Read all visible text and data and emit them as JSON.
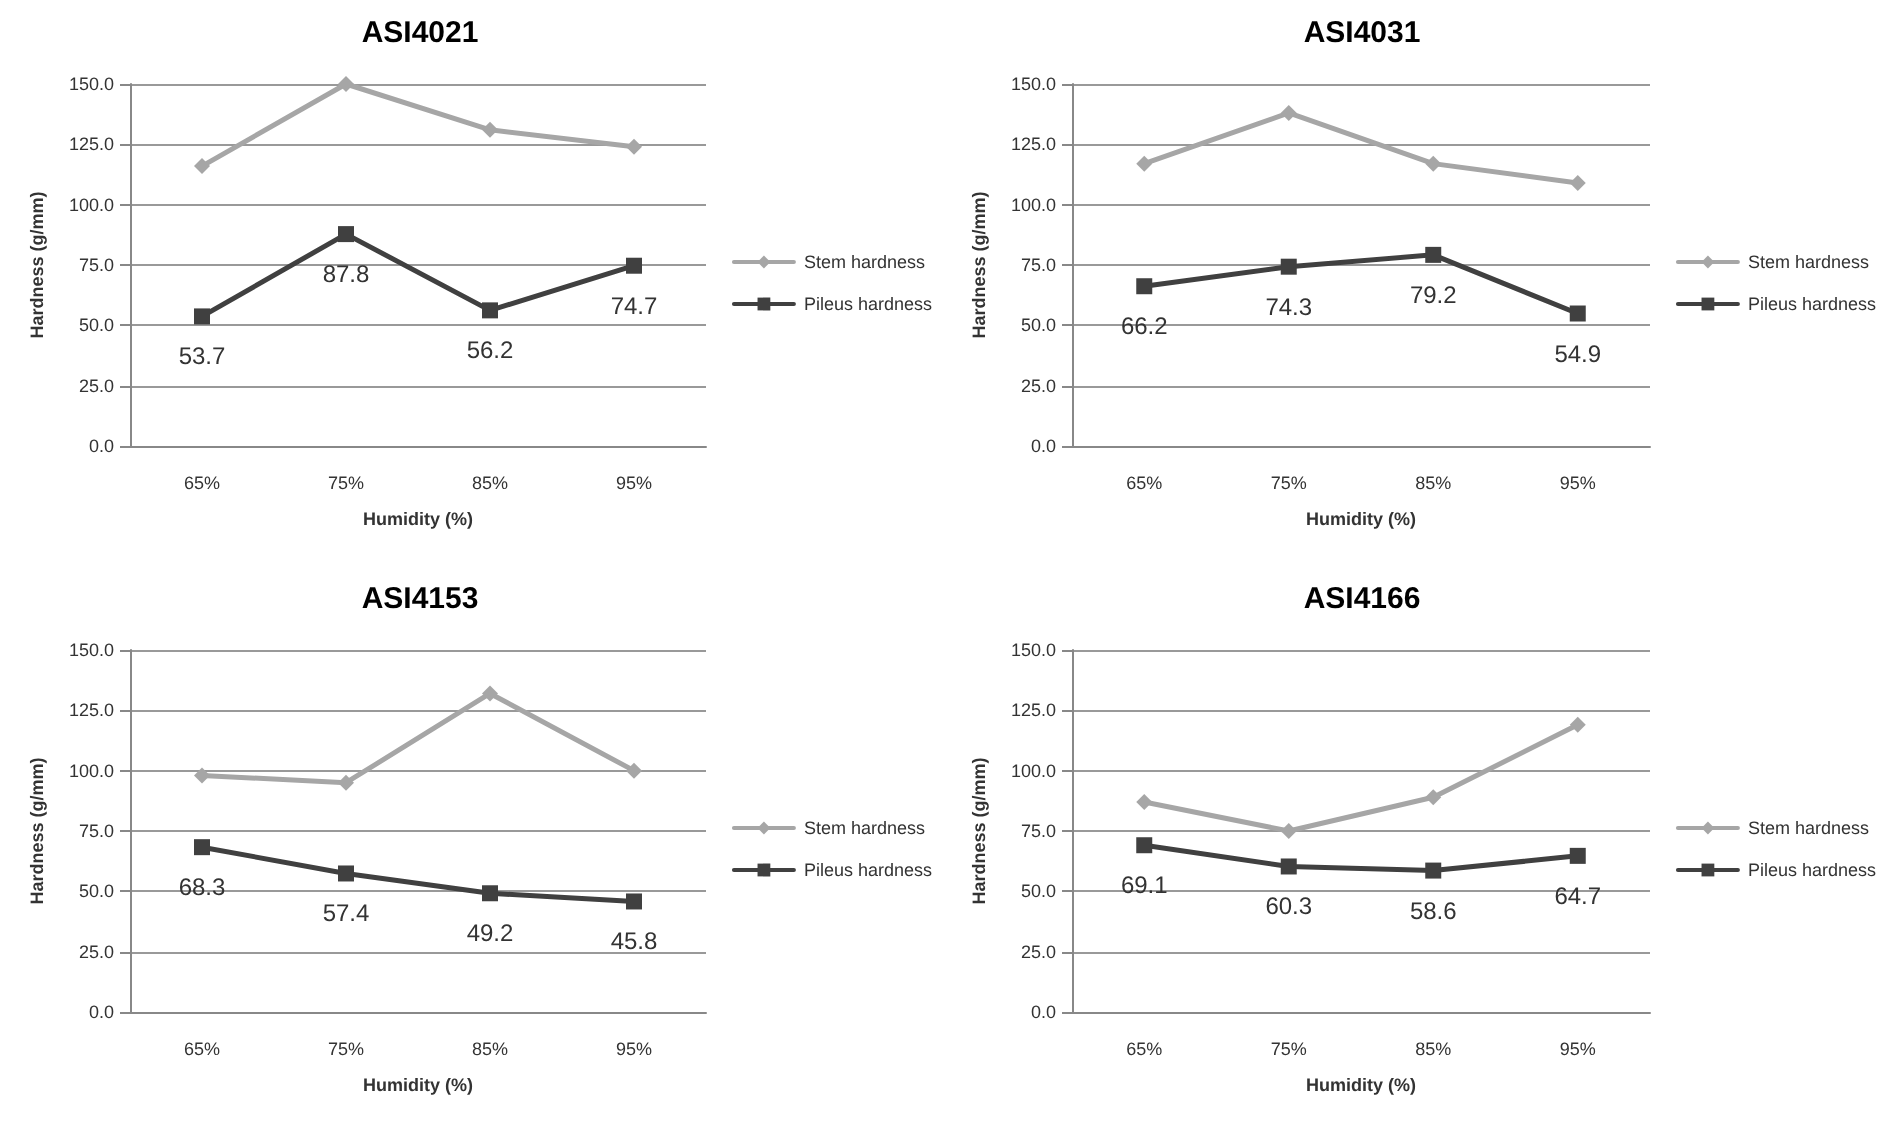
{
  "chart_data": [
    {
      "type": "line",
      "title": "ASI4021",
      "xlabel": "Humidity (%)",
      "ylabel": "Hardness (g/mm)",
      "categories": [
        "65%",
        "75%",
        "85%",
        "95%"
      ],
      "ylim": [
        0,
        150
      ],
      "yticks": [
        {
          "value": 0,
          "label": "0.0"
        },
        {
          "value": 25,
          "label": "25.0"
        },
        {
          "value": 50,
          "label": "50.0"
        },
        {
          "value": 75,
          "label": "75.0"
        },
        {
          "value": 100,
          "label": "100.0"
        },
        {
          "value": 125,
          "label": "125.0"
        },
        {
          "value": 150,
          "label": "150.0"
        }
      ],
      "grid": "y",
      "legend": "right",
      "series": [
        {
          "name": "Stem hardness",
          "color": "#a6a6a6",
          "marker": "diamond",
          "values": [
            116,
            150,
            131,
            124
          ]
        },
        {
          "name": "Pileus hardness",
          "color": "#404040",
          "marker": "square",
          "values": [
            53.7,
            87.8,
            56.2,
            74.7
          ],
          "value_labels": [
            "53.7",
            "87.8",
            "56.2",
            "74.7"
          ]
        }
      ]
    },
    {
      "type": "line",
      "title": "ASI4031",
      "xlabel": "Humidity (%)",
      "ylabel": "Hardness (g/mm)",
      "categories": [
        "65%",
        "75%",
        "85%",
        "95%"
      ],
      "ylim": [
        0,
        150
      ],
      "yticks": [
        {
          "value": 0,
          "label": "0.0"
        },
        {
          "value": 25,
          "label": "25.0"
        },
        {
          "value": 50,
          "label": "50.0"
        },
        {
          "value": 75,
          "label": "75.0"
        },
        {
          "value": 100,
          "label": "100.0"
        },
        {
          "value": 125,
          "label": "125.0"
        },
        {
          "value": 150,
          "label": "150.0"
        }
      ],
      "grid": "y",
      "legend": "right",
      "series": [
        {
          "name": "Stem hardness",
          "color": "#a6a6a6",
          "marker": "diamond",
          "values": [
            117,
            138,
            117,
            109
          ]
        },
        {
          "name": "Pileus hardness",
          "color": "#404040",
          "marker": "square",
          "values": [
            66.2,
            74.3,
            79.2,
            54.9
          ],
          "value_labels": [
            "66.2",
            "74.3",
            "79.2",
            "54.9"
          ]
        }
      ]
    },
    {
      "type": "line",
      "title": "ASI4153",
      "xlabel": "Humidity (%)",
      "ylabel": "Hardness (g/mm)",
      "categories": [
        "65%",
        "75%",
        "85%",
        "95%"
      ],
      "ylim": [
        0,
        150
      ],
      "yticks": [
        {
          "value": 0,
          "label": "0.0"
        },
        {
          "value": 25,
          "label": "25.0"
        },
        {
          "value": 50,
          "label": "50.0"
        },
        {
          "value": 75,
          "label": "75.0"
        },
        {
          "value": 100,
          "label": "100.0"
        },
        {
          "value": 125,
          "label": "125.0"
        },
        {
          "value": 150,
          "label": "150.0"
        }
      ],
      "grid": "y",
      "legend": "right",
      "series": [
        {
          "name": "Stem hardness",
          "color": "#a6a6a6",
          "marker": "diamond",
          "values": [
            98,
            95,
            132,
            100
          ]
        },
        {
          "name": "Pileus hardness",
          "color": "#404040",
          "marker": "square",
          "values": [
            68.3,
            57.4,
            49.2,
            45.8
          ],
          "value_labels": [
            "68.3",
            "57.4",
            "49.2",
            "45.8"
          ]
        }
      ]
    },
    {
      "type": "line",
      "title": "ASI4166",
      "xlabel": "Humidity (%)",
      "ylabel": "Hardness (g/mm)",
      "categories": [
        "65%",
        "75%",
        "85%",
        "95%"
      ],
      "ylim": [
        0,
        150
      ],
      "yticks": [
        {
          "value": 0,
          "label": "0.0"
        },
        {
          "value": 25,
          "label": "25.0"
        },
        {
          "value": 50,
          "label": "50.0"
        },
        {
          "value": 75,
          "label": "75.0"
        },
        {
          "value": 100,
          "label": "100.0"
        },
        {
          "value": 125,
          "label": "125.0"
        },
        {
          "value": 150,
          "label": "150.0"
        }
      ],
      "grid": "y",
      "legend": "right",
      "series": [
        {
          "name": "Stem hardness",
          "color": "#a6a6a6",
          "marker": "diamond",
          "values": [
            87,
            75,
            89,
            119
          ]
        },
        {
          "name": "Pileus hardness",
          "color": "#404040",
          "marker": "square",
          "values": [
            69.1,
            60.3,
            58.6,
            64.7
          ],
          "value_labels": [
            "69.1",
            "60.3",
            "58.6",
            "64.7"
          ]
        }
      ]
    }
  ]
}
